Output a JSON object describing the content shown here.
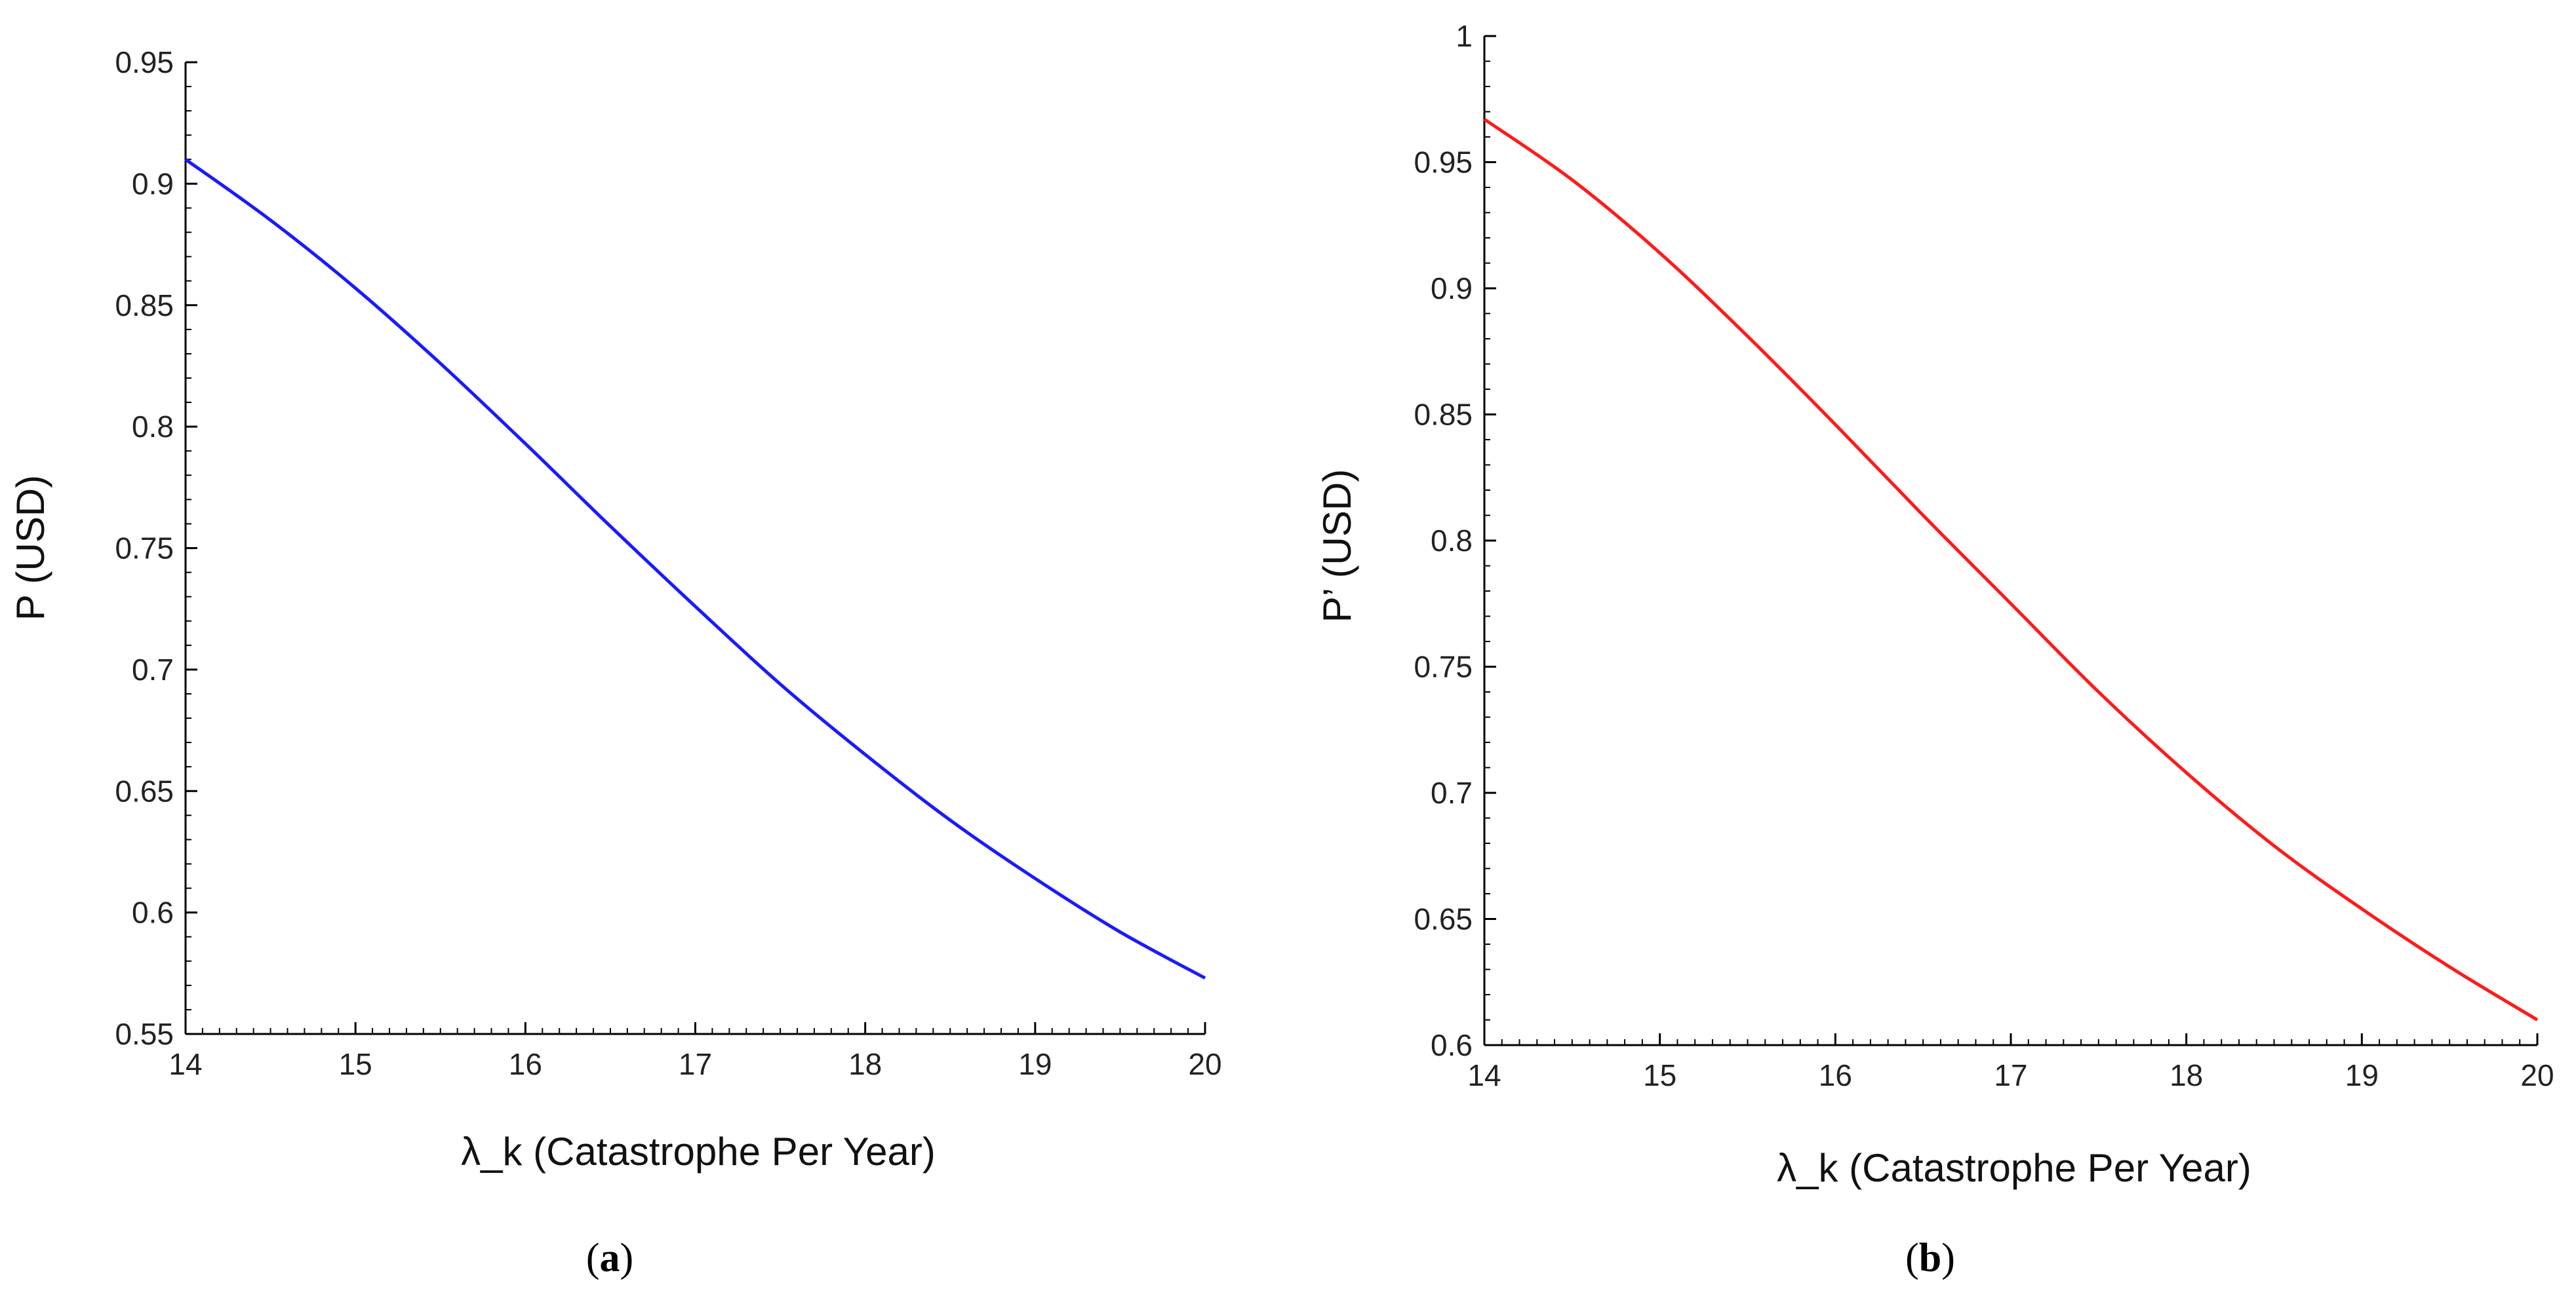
{
  "chart_data": [
    {
      "type": "line",
      "panel": "a",
      "caption_open": "(",
      "caption_letter": "a",
      "caption_close": ")",
      "xlabel": "λ_k (Catastrophe Per Year)",
      "ylabel": "P (USD)",
      "xlim": [
        14,
        20
      ],
      "ylim": [
        0.55,
        0.95
      ],
      "xticks": [
        14,
        15,
        16,
        17,
        18,
        19,
        20
      ],
      "yticks": [
        0.55,
        0.6,
        0.65,
        0.7,
        0.75,
        0.8,
        0.85,
        0.9,
        0.95
      ],
      "ytick_labels": [
        "0.55",
        "0.6",
        "0.65",
        "0.7",
        "0.75",
        "0.8",
        "0.85",
        "0.9",
        "0.95"
      ],
      "series": [
        {
          "name": "P",
          "color": "#1a1aff",
          "x": [
            14,
            14.5,
            15,
            15.5,
            16,
            16.5,
            17,
            17.5,
            18,
            18.5,
            19,
            19.5,
            20
          ],
          "y": [
            0.91,
            0.885,
            0.857,
            0.826,
            0.793,
            0.759,
            0.726,
            0.694,
            0.665,
            0.638,
            0.614,
            0.592,
            0.573
          ]
        }
      ]
    },
    {
      "type": "line",
      "panel": "b",
      "caption_open": "(",
      "caption_letter": "b",
      "caption_close": ")",
      "xlabel": "λ_k (Catastrophe Per Year)",
      "ylabel": "P’ (USD)",
      "xlim": [
        14,
        20
      ],
      "ylim": [
        0.6,
        1.0
      ],
      "xticks": [
        14,
        15,
        16,
        17,
        18,
        19,
        20
      ],
      "yticks": [
        0.6,
        0.65,
        0.7,
        0.75,
        0.8,
        0.85,
        0.9,
        0.95,
        1.0
      ],
      "ytick_labels": [
        "0.6",
        "0.65",
        "0.7",
        "0.75",
        "0.8",
        "0.85",
        "0.9",
        "0.95",
        "1"
      ],
      "series": [
        {
          "name": "P’",
          "color": "#ff1a1a",
          "x": [
            14,
            14.5,
            15,
            15.5,
            16,
            16.5,
            17,
            17.5,
            18,
            18.5,
            19,
            19.5,
            20
          ],
          "y": [
            0.967,
            0.943,
            0.914,
            0.881,
            0.846,
            0.81,
            0.775,
            0.74,
            0.708,
            0.679,
            0.654,
            0.631,
            0.61
          ]
        }
      ]
    }
  ]
}
